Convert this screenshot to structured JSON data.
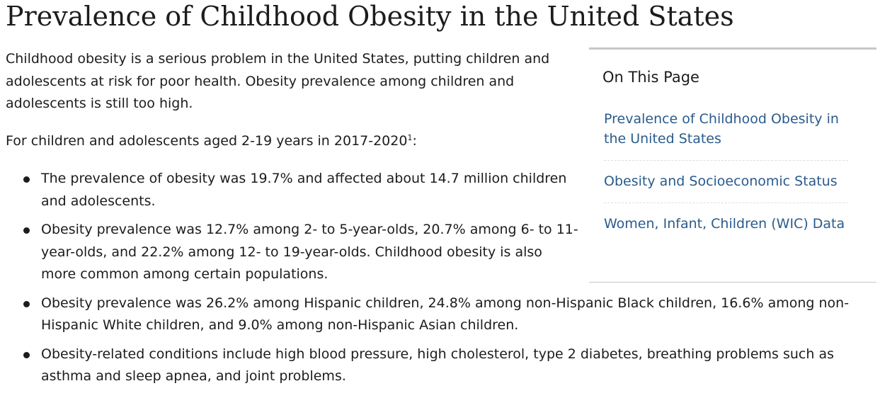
{
  "page": {
    "title": "Prevalence of Childhood Obesity in the United States"
  },
  "intro": {
    "paragraph": "Childhood obesity is a serious problem in the United States, putting children and adolescents at risk for poor health. Obesity prevalence among children and adolescents is still too high.",
    "age_line": "For children and adolescents aged 2-19 years in 2017-2020",
    "footnote_ref": "1",
    "age_line_suffix": ":"
  },
  "bullets": [
    "The prevalence of obesity was 19.7% and affected about 14.7 million children and adolescents.",
    "Obesity prevalence was 12.7% among 2- to 5-year-olds, 20.7% among 6- to 11-year-olds, and 22.2% among 12- to 19-year-olds. Childhood obesity is also more common among certain populations.",
    "Obesity prevalence was 26.2% among Hispanic children, 24.8% among non-Hispanic Black children, 16.6% among non-Hispanic White children, and 9.0% among non-Hispanic Asian children.",
    "Obesity-related conditions include high blood pressure, high cholesterol, type 2 diabetes, breathing problems such as asthma and sleep apnea, and joint problems."
  ],
  "on_this_page": {
    "heading": "On This Page",
    "links": [
      "Prevalence of Childhood Obesity in the United States",
      "Obesity and Socioeconomic Status",
      "Women, Infant, Children (WIC) Data"
    ]
  },
  "colors": {
    "link": "#2a5b8c",
    "text": "#1c1c1c",
    "border": "#c7c7c7"
  }
}
